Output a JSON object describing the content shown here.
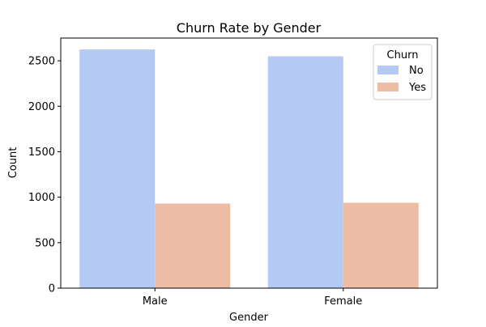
{
  "chart_data": {
    "type": "bar",
    "title": "Churn Rate by Gender",
    "xlabel": "Gender",
    "ylabel": "Count",
    "categories": [
      "Male",
      "Female"
    ],
    "ylim": [
      0,
      2750
    ],
    "yticks": [
      0,
      500,
      1000,
      1500,
      2000,
      2500
    ],
    "grid": false,
    "legend": {
      "title": "Churn",
      "placement": "top-right"
    },
    "series": [
      {
        "name": "No",
        "color": "#b4c9f4",
        "values": [
          2625,
          2549
        ]
      },
      {
        "name": "Yes",
        "color": "#ecbca5",
        "values": [
          930,
          939
        ]
      }
    ]
  }
}
